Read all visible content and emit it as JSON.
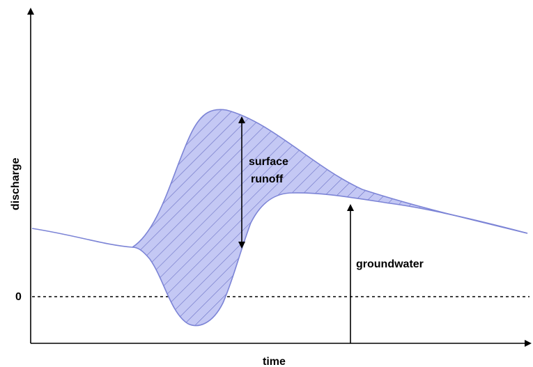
{
  "diagram": {
    "x_axis_label": "time",
    "y_axis_label": "discharge",
    "zero_label": "0",
    "surface_runoff_label_line1": "surface",
    "surface_runoff_label_line2": "runoff",
    "groundwater_label": "groundwater",
    "colors": {
      "fill": "#c4c8f4",
      "outline": "#7c84d6",
      "hatch": "#6a70c4",
      "axis": "#000000",
      "zero_line": "#000000"
    }
  }
}
